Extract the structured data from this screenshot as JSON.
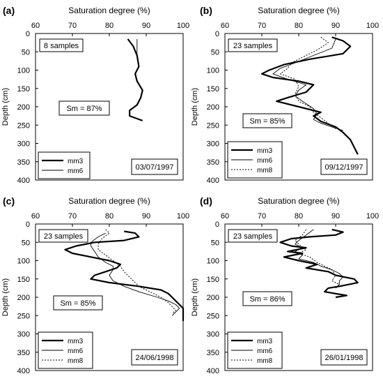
{
  "figure": {
    "x_axis_title": "Saturation degree (%)",
    "y_axis_title": "Depth (cm)",
    "x_ticks": [
      60,
      70,
      80,
      90,
      100
    ],
    "y_ticks": [
      0,
      50,
      100,
      150,
      200,
      250,
      300,
      350,
      400
    ]
  },
  "chart_data": [
    {
      "type": "line",
      "panel_label": "(a)",
      "title": "",
      "xlabel": "Saturation degree (%)",
      "ylabel": "Depth (cm)",
      "xlim": [
        60,
        100
      ],
      "ylim": [
        0,
        400
      ],
      "y_inverted": true,
      "samples_label": "8 samples",
      "sm_label": "Sm = 87%",
      "date_label": "03/07/1997",
      "legend": [
        "mm3",
        "mm6"
      ],
      "series": [
        {
          "name": "mm3",
          "style": "solid-thick",
          "points": [
            [
              85,
              15
            ],
            [
              86.5,
              35
            ],
            [
              87.5,
              60
            ],
            [
              88,
              90
            ],
            [
              87,
              110
            ],
            [
              87.5,
              130
            ],
            [
              89,
              155
            ],
            [
              88.5,
              175
            ],
            [
              87.5,
              195
            ],
            [
              85.5,
              210
            ],
            [
              85.5,
              225
            ],
            [
              89,
              238
            ]
          ]
        },
        {
          "name": "mm6",
          "style": "solid-thin",
          "points": [
            [
              87.5,
              15
            ],
            [
              87.5,
              40
            ],
            [
              87.5,
              65
            ],
            [
              88,
              90
            ],
            [
              87.5,
              100
            ]
          ]
        }
      ]
    },
    {
      "type": "line",
      "panel_label": "(b)",
      "title": "",
      "xlabel": "Saturation degree (%)",
      "ylabel": "Depth (cm)",
      "xlim": [
        60,
        100
      ],
      "ylim": [
        0,
        400
      ],
      "y_inverted": true,
      "samples_label": "23 samples",
      "sm_label": "Sm = 85%",
      "date_label": "09/12/1997",
      "legend": [
        "mm3",
        "mm6",
        "mm8"
      ],
      "series": [
        {
          "name": "mm3",
          "style": "solid-thick",
          "points": [
            [
              89,
              10
            ],
            [
              92,
              20
            ],
            [
              94,
              35
            ],
            [
              92,
              55
            ],
            [
              83,
              70
            ],
            [
              76,
              85
            ],
            [
              72,
              100
            ],
            [
              70,
              110
            ],
            [
              73,
              120
            ],
            [
              80,
              130
            ],
            [
              84,
              140
            ],
            [
              82,
              160
            ],
            [
              77,
              175
            ],
            [
              74,
              185
            ],
            [
              80,
              200
            ],
            [
              86,
              215
            ],
            [
              84,
              225
            ],
            [
              86,
              240
            ],
            [
              90,
              255
            ],
            [
              92,
              270
            ],
            [
              94,
              290
            ],
            [
              95,
              310
            ],
            [
              96,
              330
            ]
          ]
        },
        {
          "name": "mm6",
          "style": "solid-thin",
          "points": [
            [
              90,
              15
            ],
            [
              89,
              40
            ],
            [
              84,
              60
            ],
            [
              79,
              80
            ],
            [
              75,
              95
            ],
            [
              73,
              110
            ],
            [
              77,
              125
            ],
            [
              82,
              140
            ],
            [
              80,
              155
            ],
            [
              79,
              170
            ],
            [
              81,
              185
            ],
            [
              84,
              205
            ],
            [
              85,
              220
            ],
            [
              84,
              235
            ],
            [
              86,
              245
            ],
            [
              89,
              255
            ],
            [
              92,
              265
            ]
          ]
        },
        {
          "name": "mm8",
          "style": "dotted",
          "points": [
            [
              86,
              10
            ],
            [
              88,
              25
            ],
            [
              85,
              45
            ],
            [
              81,
              65
            ],
            [
              78,
              80
            ],
            [
              77,
              95
            ],
            [
              75,
              110
            ],
            [
              79,
              125
            ],
            [
              80,
              145
            ],
            [
              79,
              165
            ],
            [
              80,
              185
            ],
            [
              83,
              200
            ],
            [
              84,
              215
            ],
            [
              86,
              230
            ],
            [
              88,
              245
            ],
            [
              90,
              260
            ]
          ]
        }
      ]
    },
    {
      "type": "line",
      "panel_label": "(c)",
      "title": "",
      "xlabel": "Saturation degree (%)",
      "ylabel": "Depth (cm)",
      "xlim": [
        60,
        100
      ],
      "ylim": [
        0,
        400
      ],
      "y_inverted": true,
      "samples_label": "23 samples",
      "sm_label": "Sm = 85%",
      "date_label": "24/06/1998",
      "legend": [
        "mm3",
        "mm6",
        "mm8"
      ],
      "series": [
        {
          "name": "mm3",
          "style": "solid-thick",
          "points": [
            [
              84,
              20
            ],
            [
              87,
              25
            ],
            [
              88,
              35
            ],
            [
              84,
              45
            ],
            [
              76,
              50
            ],
            [
              71,
              60
            ],
            [
              68,
              70
            ],
            [
              70,
              80
            ],
            [
              75,
              90
            ],
            [
              80,
              100
            ],
            [
              83,
              110
            ],
            [
              82,
              120
            ],
            [
              79,
              130
            ],
            [
              76,
              140
            ],
            [
              75,
              150
            ],
            [
              80,
              160
            ],
            [
              88,
              170
            ],
            [
              94,
              180
            ],
            [
              96,
              190
            ],
            [
              97,
              200
            ],
            [
              98,
              210
            ],
            [
              99,
              220
            ],
            [
              100,
              230
            ],
            [
              100,
              240
            ],
            [
              100,
              255
            ],
            [
              100,
              265
            ]
          ]
        },
        {
          "name": "mm6",
          "style": "solid-thin",
          "points": [
            [
              79,
              25
            ],
            [
              77,
              35
            ],
            [
              75,
              50
            ],
            [
              75,
              60
            ],
            [
              76,
              75
            ],
            [
              77,
              90
            ],
            [
              79,
              105
            ],
            [
              81,
              115
            ],
            [
              81,
              125
            ],
            [
              80,
              140
            ],
            [
              81,
              155
            ],
            [
              84,
              170
            ],
            [
              88,
              185
            ],
            [
              93,
              200
            ],
            [
              96,
              210
            ],
            [
              98,
              220
            ],
            [
              99,
              230
            ],
            [
              98,
              240
            ],
            [
              97,
              250
            ]
          ]
        },
        {
          "name": "mm8",
          "style": "dotted",
          "points": [
            [
              79,
              15
            ],
            [
              80,
              25
            ],
            [
              78,
              40
            ],
            [
              77,
              55
            ],
            [
              77,
              70
            ],
            [
              79,
              85
            ],
            [
              81,
              100
            ],
            [
              83,
              115
            ],
            [
              84,
              130
            ],
            [
              86,
              150
            ],
            [
              88,
              170
            ],
            [
              91,
              185
            ],
            [
              94,
              200
            ],
            [
              96,
              215
            ],
            [
              97,
              225
            ],
            [
              98,
              235
            ],
            [
              97,
              245
            ]
          ]
        }
      ]
    },
    {
      "type": "line",
      "panel_label": "(d)",
      "title": "",
      "xlabel": "Saturation degree (%)",
      "ylabel": "Depth (cm)",
      "xlim": [
        60,
        100
      ],
      "ylim": [
        0,
        400
      ],
      "y_inverted": true,
      "samples_label": "23 samples",
      "sm_label": "Sm = 86%",
      "date_label": "26/01/1998",
      "legend": [
        "mm3",
        "mm6",
        "mm8"
      ],
      "series": [
        {
          "name": "mm3",
          "style": "solid-thick",
          "points": [
            [
              89,
              15
            ],
            [
              92,
              22
            ],
            [
              90,
              30
            ],
            [
              83,
              35
            ],
            [
              78,
              40
            ],
            [
              75,
              50
            ],
            [
              78,
              60
            ],
            [
              82,
              65
            ],
            [
              77,
              75
            ],
            [
              81,
              80
            ],
            [
              76,
              90
            ],
            [
              80,
              100
            ],
            [
              85,
              110
            ],
            [
              82,
              120
            ],
            [
              88,
              130
            ],
            [
              90,
              140
            ],
            [
              95,
              150
            ],
            [
              96,
              160
            ],
            [
              91,
              170
            ],
            [
              88,
              175
            ],
            [
              87,
              185
            ],
            [
              90,
              190
            ],
            [
              93,
              195
            ],
            [
              90,
              200
            ]
          ]
        },
        {
          "name": "mm6",
          "style": "solid-thin",
          "points": [
            [
              84,
              15
            ],
            [
              82,
              30
            ],
            [
              80,
              45
            ],
            [
              79,
              55
            ],
            [
              81,
              65
            ],
            [
              79,
              75
            ],
            [
              81,
              85
            ],
            [
              80,
              95
            ],
            [
              84,
              105
            ],
            [
              86,
              115
            ],
            [
              89,
              125
            ],
            [
              91,
              135
            ],
            [
              92,
              145
            ],
            [
              91,
              155
            ],
            [
              91,
              165
            ],
            [
              90,
              175
            ]
          ]
        },
        {
          "name": "mm8",
          "style": "dotted",
          "points": [
            [
              82,
              15
            ],
            [
              81,
              30
            ],
            [
              79,
              45
            ],
            [
              80,
              55
            ],
            [
              82,
              70
            ],
            [
              80,
              80
            ],
            [
              83,
              90
            ],
            [
              85,
              105
            ],
            [
              87,
              115
            ],
            [
              89,
              125
            ],
            [
              90,
              140
            ],
            [
              89,
              155
            ],
            [
              91,
              165
            ],
            [
              90,
              175
            ]
          ]
        }
      ]
    }
  ]
}
